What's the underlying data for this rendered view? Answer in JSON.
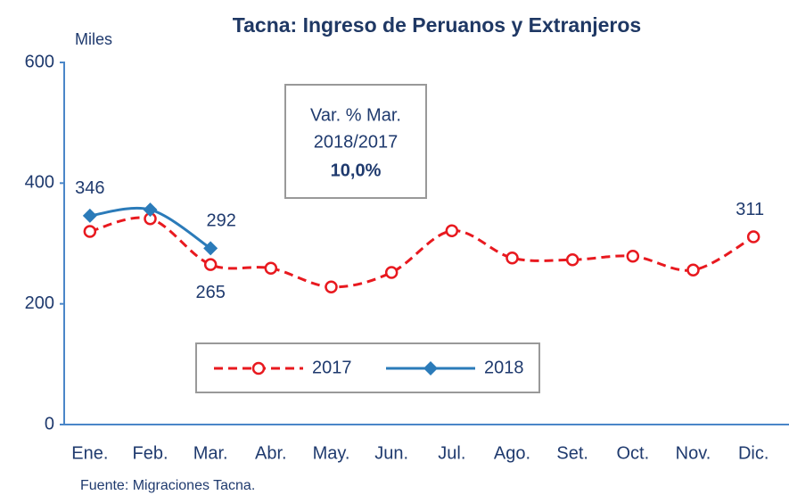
{
  "chart_data": {
    "type": "line",
    "title": "Tacna: Ingreso de Peruanos y Extranjeros",
    "y_axis_label": "Miles",
    "source": "Fuente:  Migraciones Tacna.",
    "annotation": [
      "Var. % Mar.",
      "2018/2017",
      "10,0%"
    ],
    "categories": [
      "Ene.",
      "Feb.",
      "Mar.",
      "Abr.",
      "May.",
      "Jun.",
      "Jul.",
      "Ago.",
      "Set.",
      "Oct.",
      "Nov.",
      "Dic."
    ],
    "series": [
      {
        "name": "2017",
        "color": "#e8191f",
        "marker": "circle",
        "dashed": true,
        "values": [
          320,
          341,
          265,
          259,
          228,
          252,
          321,
          276,
          273,
          279,
          256,
          311
        ],
        "value_labels": [
          null,
          null,
          "265",
          null,
          null,
          null,
          null,
          null,
          null,
          null,
          null,
          "311"
        ]
      },
      {
        "name": "2018",
        "color": "#2b7bb9",
        "marker": "diamond",
        "dashed": false,
        "values": [
          346,
          356,
          292,
          null,
          null,
          null,
          null,
          null,
          null,
          null,
          null,
          null
        ],
        "value_labels": [
          "346",
          null,
          "292",
          null,
          null,
          null,
          null,
          null,
          null,
          null,
          null,
          null
        ]
      }
    ],
    "ylim": [
      0,
      600
    ],
    "yticks": [
      0,
      200,
      400,
      600
    ],
    "grid": false,
    "legend": "bottom-center"
  }
}
